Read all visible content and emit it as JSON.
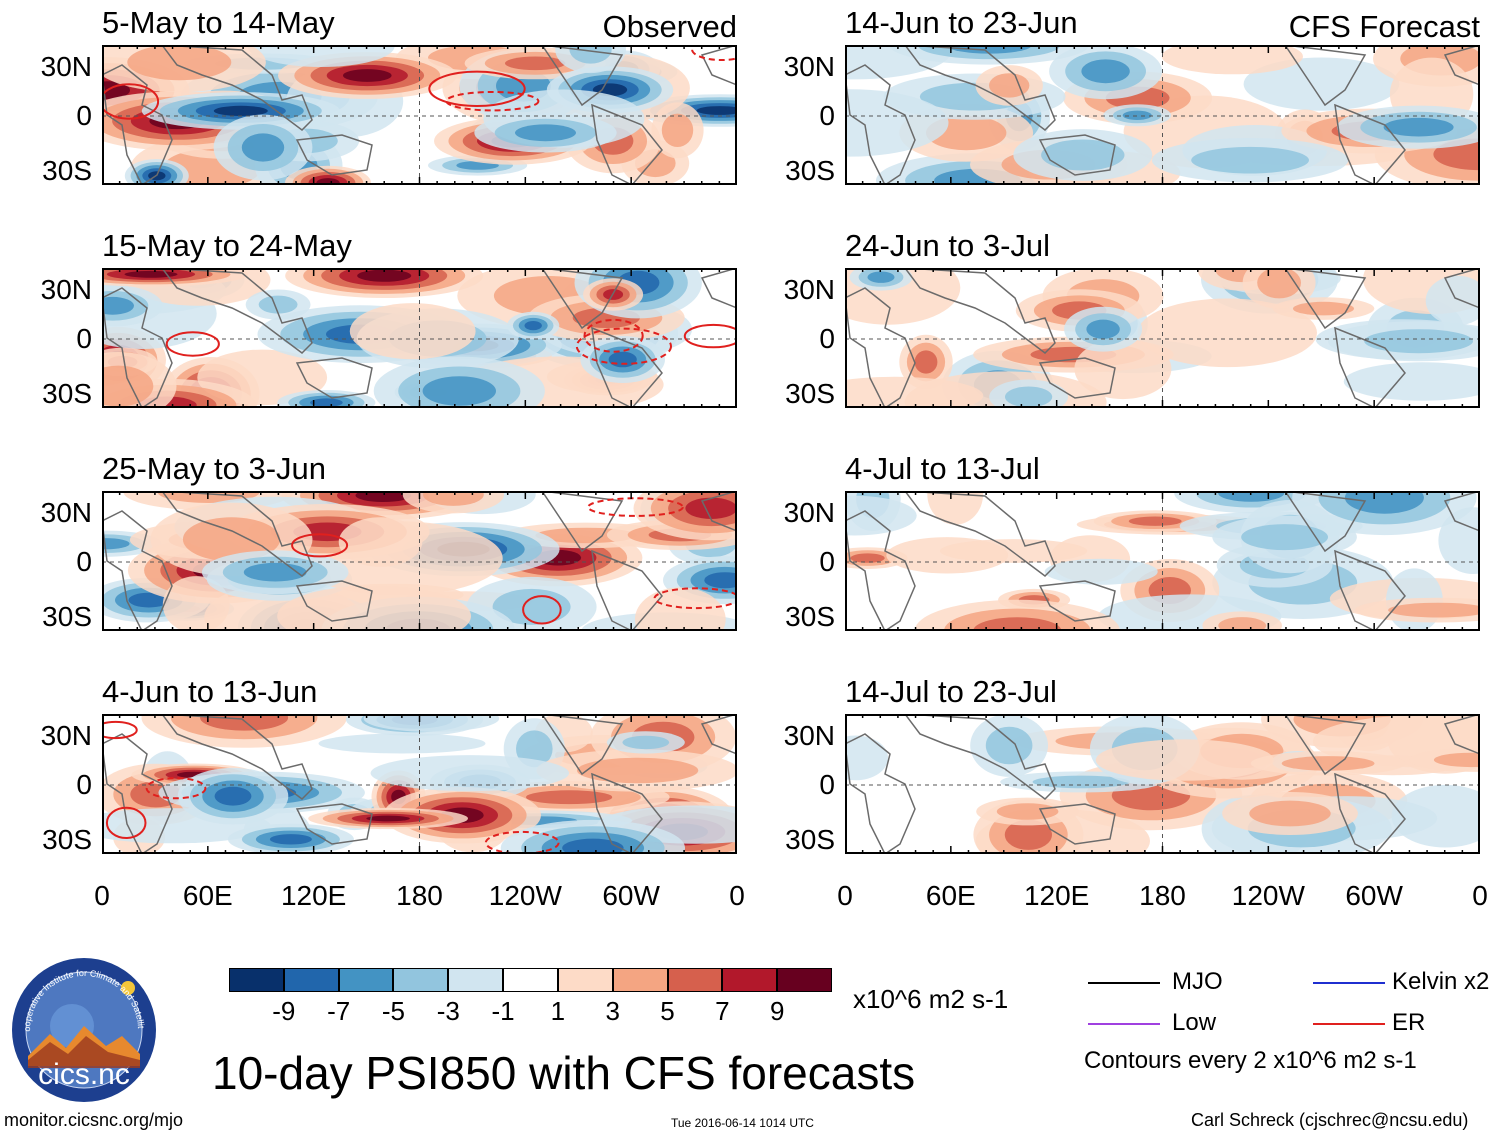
{
  "chart_data": {
    "type": "heatmap",
    "title": "10-day PSI850 with CFS forecasts",
    "units": "x10^6 m2 s-1",
    "colorbar": {
      "ticks": [
        "-9",
        "-7",
        "-5",
        "-3",
        "-1",
        "1",
        "3",
        "5",
        "7",
        "9"
      ],
      "colors": [
        "#08306b",
        "#2166ac",
        "#4393c3",
        "#92c5de",
        "#d1e5f0",
        "#ffffff",
        "#fddbc7",
        "#f4a582",
        "#d6604d",
        "#b2182b",
        "#67001f"
      ]
    },
    "y_ticks": [
      "30N",
      "0",
      "30S"
    ],
    "x_ticks": [
      "0",
      "60E",
      "120E",
      "180",
      "120W",
      "60W",
      "0"
    ],
    "columns": [
      {
        "label": "Observed",
        "panels": [
          {
            "title": "5-May to 14-May"
          },
          {
            "title": "15-May to 24-May"
          },
          {
            "title": "25-May to 3-Jun"
          },
          {
            "title": "4-Jun to 13-Jun"
          }
        ]
      },
      {
        "label": "CFS Forecast",
        "panels": [
          {
            "title": "14-Jun to 23-Jun"
          },
          {
            "title": "24-Jun to 3-Jul"
          },
          {
            "title": "4-Jul to 13-Jul"
          },
          {
            "title": "14-Jul to 23-Jul"
          }
        ]
      }
    ],
    "legend": [
      {
        "label": "MJO",
        "color": "#000000"
      },
      {
        "label": "Kelvin x2",
        "color": "#1f2fd0"
      },
      {
        "label": "Low",
        "color": "#a040e0"
      },
      {
        "label": "ER",
        "color": "#e0201e"
      }
    ],
    "contour_note": "Contours every 2 x10^6 m2 s-1"
  },
  "logo": {
    "text": "cics.nc",
    "ring_text": "Cooperative Institute for Climate and Satellites"
  },
  "footer": {
    "left": "monitor.cicsnc.org/mjo",
    "center": "Tue 2016-06-14 1014 UTC",
    "right": "Carl Schreck (cjschrec@ncsu.edu)"
  }
}
